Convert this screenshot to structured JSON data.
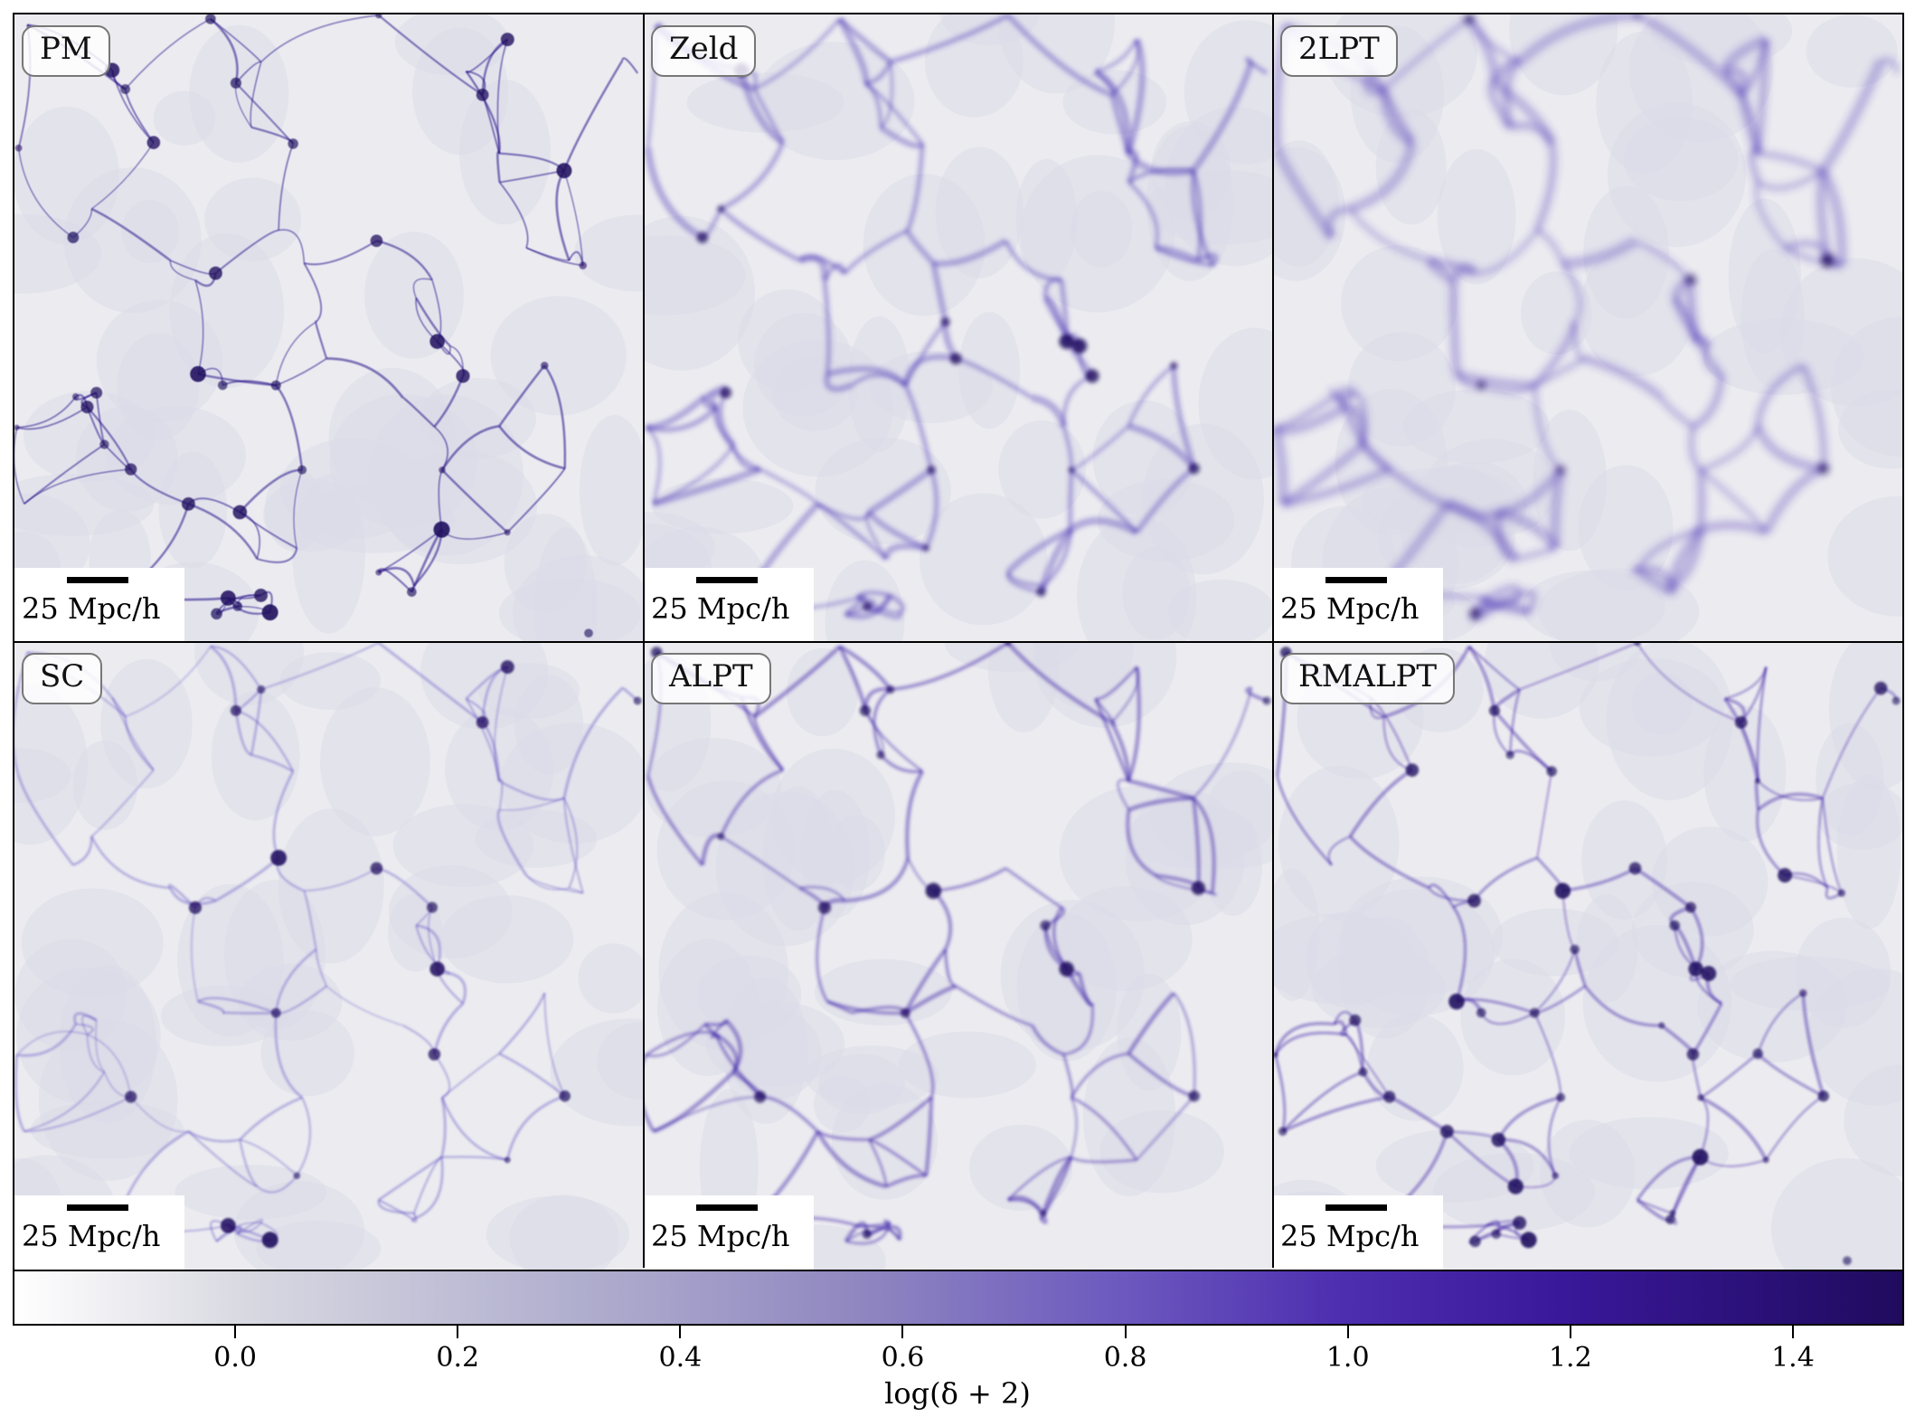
{
  "panels": [
    {
      "label": "PM",
      "scale_label": "25 Mpc/h"
    },
    {
      "label": "Zeld",
      "scale_label": "25 Mpc/h"
    },
    {
      "label": "2LPT",
      "scale_label": "25 Mpc/h"
    },
    {
      "label": "SC",
      "scale_label": "25 Mpc/h"
    },
    {
      "label": "ALPT",
      "scale_label": "25 Mpc/h"
    },
    {
      "label": "RMALPT",
      "scale_label": "25 Mpc/h"
    }
  ],
  "colorbar": {
    "label": "log(δ + 2)",
    "ticks": [
      "0.0",
      "0.2",
      "0.4",
      "0.6",
      "0.8",
      "1.0",
      "1.2",
      "1.4"
    ],
    "range": [
      -0.2,
      1.5
    ],
    "colors": [
      "#ffffff",
      "#b0aece",
      "#6e5bbf",
      "#3a189a",
      "#1f0b5e"
    ]
  }
}
